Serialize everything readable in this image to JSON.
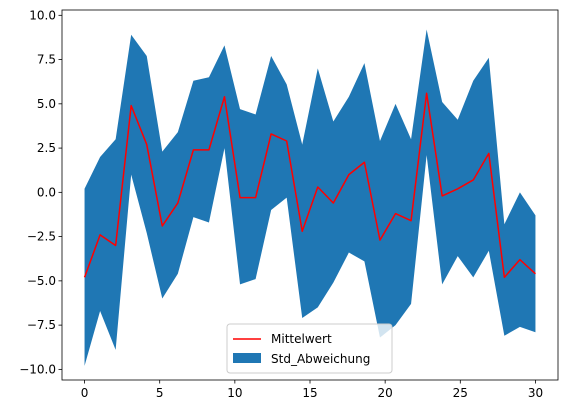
{
  "chart_data": {
    "type": "area",
    "title": "",
    "xlabel": "",
    "ylabel": "",
    "xlim": [
      -1.5,
      31.5
    ],
    "ylim": [
      -10.6,
      10.3
    ],
    "x_ticks": [
      0,
      5,
      10,
      15,
      20,
      25,
      30
    ],
    "x_tick_labels": [
      "0",
      "5",
      "10",
      "15",
      "20",
      "25",
      "30"
    ],
    "y_ticks": [
      -10.0,
      -7.5,
      -5.0,
      -2.5,
      0.0,
      2.5,
      5.0,
      7.5,
      10.0
    ],
    "y_tick_labels": [
      "−10.0",
      "−7.5",
      "−5.0",
      "−2.5",
      "0.0",
      "2.5",
      "5.0",
      "7.5",
      "10.0"
    ],
    "x": [
      0.0,
      1.034,
      2.069,
      3.103,
      4.138,
      5.172,
      6.207,
      7.241,
      8.276,
      9.31,
      10.345,
      11.379,
      12.414,
      13.448,
      14.483,
      15.517,
      16.552,
      17.586,
      18.621,
      19.655,
      20.69,
      21.724,
      22.759,
      23.793,
      24.828,
      25.862,
      26.897,
      27.931,
      28.966,
      30.0
    ],
    "grid": false,
    "legend_position": "bottom-center",
    "series": [
      {
        "name": "Mittelwert",
        "kind": "line",
        "color": "#ff0000",
        "values": [
          -4.8,
          -2.4,
          -3.0,
          4.9,
          2.7,
          -1.9,
          -0.6,
          2.4,
          2.4,
          5.4,
          -0.3,
          -0.3,
          3.3,
          2.9,
          -2.2,
          0.3,
          -0.6,
          1.0,
          1.7,
          -2.7,
          -1.2,
          -1.6,
          5.6,
          -0.2,
          0.2,
          0.7,
          2.2,
          -4.8,
          -3.8,
          -4.6
        ]
      },
      {
        "name": "Std_Abweichung",
        "kind": "band",
        "color": "#1f77b4",
        "upper": [
          0.2,
          2.0,
          3.0,
          8.9,
          7.7,
          2.3,
          3.4,
          6.3,
          6.5,
          8.3,
          4.7,
          4.4,
          7.7,
          6.1,
          2.7,
          7.0,
          4.0,
          5.4,
          7.3,
          2.9,
          5.0,
          3.0,
          9.2,
          5.1,
          4.1,
          6.3,
          7.6,
          -1.8,
          0.0,
          -1.3
        ],
        "lower": [
          -9.8,
          -6.7,
          -8.9,
          1.0,
          -2.3,
          -6.0,
          -4.6,
          -1.4,
          -1.7,
          2.5,
          -5.2,
          -4.9,
          -1.0,
          -0.3,
          -7.1,
          -6.5,
          -5.1,
          -3.4,
          -3.9,
          -8.2,
          -7.5,
          -6.3,
          2.1,
          -5.2,
          -3.6,
          -4.8,
          -3.3,
          -8.1,
          -7.6,
          -7.9
        ]
      }
    ]
  }
}
